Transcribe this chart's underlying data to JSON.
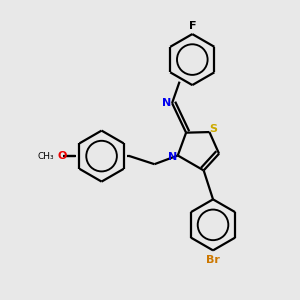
{
  "bg_color": "#e8e8e8",
  "atom_colors": {
    "N": "#0000ee",
    "S": "#ccaa00",
    "O": "#ee0000",
    "F": "#111111",
    "Br": "#cc7700",
    "C": "#000000"
  },
  "lw": 1.6,
  "ring_r": 0.082
}
